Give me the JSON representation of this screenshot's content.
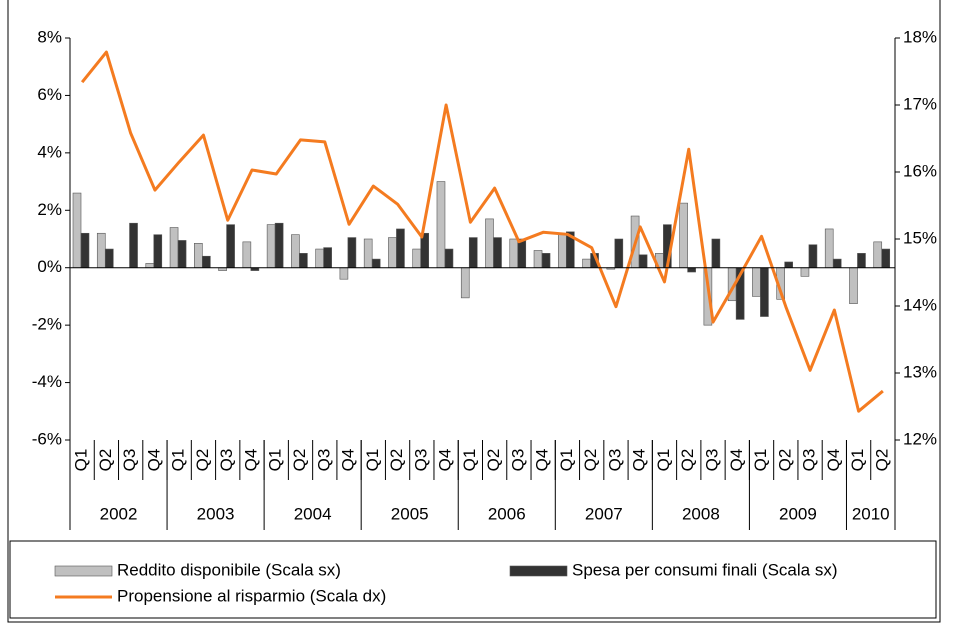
{
  "chart_data": {
    "type": "bar-line",
    "categories": [
      "Q1",
      "Q2",
      "Q3",
      "Q4",
      "Q1",
      "Q2",
      "Q3",
      "Q4",
      "Q1",
      "Q2",
      "Q3",
      "Q4",
      "Q1",
      "Q2",
      "Q3",
      "Q4",
      "Q1",
      "Q2",
      "Q3",
      "Q4",
      "Q1",
      "Q2",
      "Q3",
      "Q4",
      "Q1",
      "Q2",
      "Q3",
      "Q4",
      "Q1",
      "Q2",
      "Q3",
      "Q4",
      "Q1",
      "Q2"
    ],
    "category_groups": [
      {
        "label": "2002",
        "count": 4
      },
      {
        "label": "2003",
        "count": 4
      },
      {
        "label": "2004",
        "count": 4
      },
      {
        "label": "2005",
        "count": 4
      },
      {
        "label": "2006",
        "count": 4
      },
      {
        "label": "2007",
        "count": 4
      },
      {
        "label": "2008",
        "count": 4
      },
      {
        "label": "2009",
        "count": 4
      },
      {
        "label": "2010",
        "count": 2
      }
    ],
    "series": [
      {
        "name": "Reddito disponibile (Scala sx)",
        "type": "bar",
        "axis": "y",
        "color": "#c0c0c0",
        "values": [
          2.6,
          1.2,
          0,
          0.15,
          1.4,
          0.85,
          -0.1,
          0.9,
          1.5,
          1.15,
          0.65,
          -0.4,
          1.0,
          1.05,
          0.65,
          3.0,
          -1.05,
          1.7,
          1.0,
          0.6,
          1.15,
          0.3,
          -0.05,
          1.8,
          0.5,
          2.25,
          -2.0,
          -1.15,
          -1.0,
          -1.1,
          -0.3,
          1.35,
          -1.25,
          0.9
        ]
      },
      {
        "name": "Spesa per consumi finali (Scala sx)",
        "type": "bar",
        "axis": "y",
        "color": "#333333",
        "values": [
          1.2,
          0.65,
          1.55,
          1.15,
          0.95,
          0.4,
          1.5,
          -0.1,
          1.55,
          0.5,
          0.7,
          1.05,
          0.3,
          1.35,
          1.2,
          0.65,
          1.05,
          1.05,
          1.0,
          0.5,
          1.25,
          0.5,
          1.0,
          0.45,
          1.5,
          -0.15,
          1.0,
          -1.8,
          -1.7,
          0.2,
          0.8,
          0.3,
          0.5,
          0.65
        ]
      },
      {
        "name": "Propensione al risparmio (Scala dx)",
        "type": "line",
        "axis": "y2",
        "color": "#f47b20",
        "values": [
          17.34,
          17.79,
          16.58,
          15.73,
          16.15,
          16.55,
          15.28,
          16.03,
          15.97,
          16.48,
          16.45,
          15.22,
          15.79,
          15.52,
          15.03,
          17.0,
          15.25,
          15.76,
          14.96,
          15.1,
          15.07,
          14.87,
          13.99,
          15.18,
          14.36,
          16.34,
          13.76,
          14.39,
          15.04,
          13.99,
          13.04,
          13.94,
          12.43,
          12.73
        ]
      }
    ],
    "ylim": [
      -6,
      8
    ],
    "yticks": [
      {
        "value": -6,
        "label": "-6%"
      },
      {
        "value": -4,
        "label": "-4%"
      },
      {
        "value": -2,
        "label": "-2%"
      },
      {
        "value": 0,
        "label": "0%"
      },
      {
        "value": 2,
        "label": "2%"
      },
      {
        "value": 4,
        "label": "4%"
      },
      {
        "value": 6,
        "label": "6%"
      },
      {
        "value": 8,
        "label": "8%"
      }
    ],
    "y2lim": [
      12,
      18
    ],
    "y2ticks": [
      {
        "value": 12,
        "label": "12%"
      },
      {
        "value": 13,
        "label": "13%"
      },
      {
        "value": 14,
        "label": "14%"
      },
      {
        "value": 15,
        "label": "15%"
      },
      {
        "value": 16,
        "label": "16%"
      },
      {
        "value": 17,
        "label": "17%"
      },
      {
        "value": 18,
        "label": "18%"
      }
    ],
    "grid": false,
    "legend": "bottom"
  }
}
